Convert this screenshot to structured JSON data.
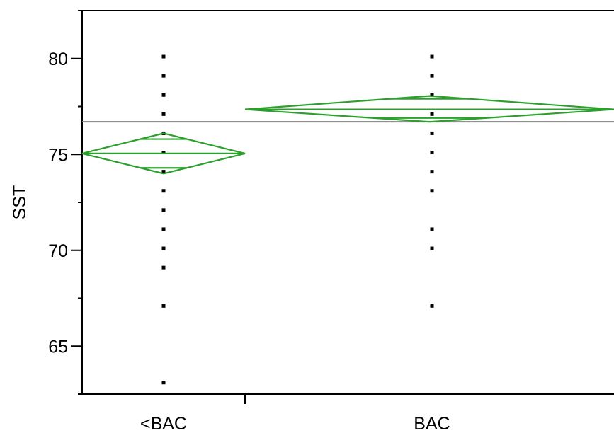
{
  "chart_data": {
    "type": "scatter",
    "title": "",
    "xlabel": "",
    "ylabel": "SST",
    "ylim": [
      62.5,
      82.5
    ],
    "y_ticks": [
      65,
      70,
      75,
      80
    ],
    "grid": false,
    "categories": [
      "<BAC",
      "BAC"
    ],
    "points": [
      {
        "group": "<BAC",
        "values": [
          80.1,
          79.1,
          78.1,
          77.1,
          76.1,
          75.1,
          74.1,
          73.1,
          72.1,
          71.1,
          70.1,
          69.1,
          67.1,
          63.1
        ]
      },
      {
        "group": "BAC",
        "values": [
          80.1,
          79.1,
          78.1,
          77.1,
          76.1,
          75.1,
          74.1,
          73.1,
          71.1,
          70.1,
          67.1
        ]
      }
    ],
    "grand_mean": 76.7,
    "means_diamonds": {
      "color": "#2ca02c",
      "groups": [
        {
          "group": "<BAC",
          "mean": 75.05,
          "upper_ci": 76.1,
          "lower_ci": 74.0,
          "upper_overlap": 75.8,
          "lower_overlap": 74.3
        },
        {
          "group": "BAC",
          "mean": 77.35,
          "upper_ci": 78.05,
          "lower_ci": 76.7,
          "upper_overlap": 77.9,
          "lower_overlap": 76.9
        }
      ]
    },
    "colors": {
      "points": "#000000",
      "diamond": "#2ca02c",
      "grand_mean_line": "#808080",
      "axis": "#000000"
    }
  }
}
